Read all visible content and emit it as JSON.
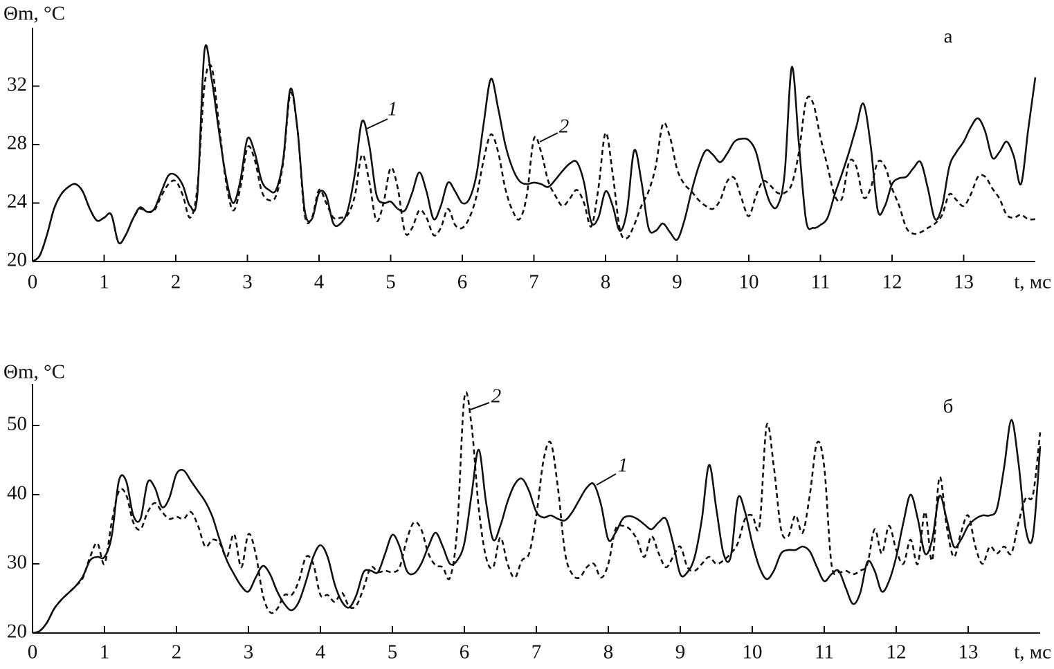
{
  "chart_data": [
    {
      "type": "line",
      "panel_label": "а",
      "y_label": "Θm, °C",
      "x_label": "t, мс",
      "x": [
        0,
        0.1,
        0.2,
        0.3,
        0.4,
        0.5,
        0.6,
        0.7,
        0.8,
        0.9,
        1,
        1.1,
        1.2,
        1.3,
        1.4,
        1.5,
        1.6,
        1.7,
        1.8,
        1.9,
        2,
        2.1,
        2.2,
        2.3,
        2.4,
        2.5,
        2.6,
        2.7,
        2.8,
        2.9,
        3,
        3.1,
        3.2,
        3.3,
        3.4,
        3.5,
        3.6,
        3.7,
        3.8,
        3.9,
        4,
        4.1,
        4.2,
        4.3,
        4.4,
        4.5,
        4.6,
        4.7,
        4.8,
        4.9,
        5,
        5.1,
        5.2,
        5.3,
        5.4,
        5.5,
        5.6,
        5.7,
        5.8,
        5.9,
        6,
        6.1,
        6.2,
        6.3,
        6.4,
        6.5,
        6.6,
        6.7,
        6.8,
        6.9,
        7,
        7.1,
        7.2,
        7.3,
        7.4,
        7.5,
        7.6,
        7.7,
        7.8,
        7.9,
        8,
        8.1,
        8.2,
        8.3,
        8.4,
        8.5,
        8.6,
        8.7,
        8.8,
        8.9,
        9,
        9.1,
        9.2,
        9.3,
        9.4,
        9.5,
        9.6,
        9.7,
        9.8,
        9.9,
        10,
        10.1,
        10.2,
        10.3,
        10.4,
        10.5,
        10.6,
        10.7,
        10.8,
        10.9,
        11,
        11.1,
        11.2,
        11.3,
        11.4,
        11.5,
        11.6,
        11.7,
        11.8,
        11.9,
        12,
        12.1,
        12.2,
        12.3,
        12.4,
        12.5,
        12.6,
        12.7,
        12.8,
        12.9,
        13,
        13.1,
        13.2,
        13.3,
        13.4,
        13.5,
        13.6,
        13.7,
        13.8,
        13.9,
        14
      ],
      "series": [
        {
          "name": "1",
          "color": "#111111",
          "style": "solid",
          "values": [
            20.0,
            20.4,
            21.8,
            23.6,
            24.6,
            25.1,
            25.3,
            24.8,
            23.6,
            22.8,
            23.0,
            23.2,
            21.3,
            21.8,
            22.9,
            23.7,
            23.4,
            23.6,
            24.8,
            25.9,
            25.9,
            25.2,
            23.8,
            24.5,
            34.4,
            32.5,
            29.0,
            25.8,
            24.0,
            25.5,
            28.4,
            27.5,
            25.5,
            24.9,
            24.9,
            27.0,
            31.8,
            29.0,
            23.5,
            22.9,
            24.7,
            24.5,
            22.6,
            22.6,
            23.5,
            26.0,
            29.6,
            28.0,
            24.6,
            24.0,
            24.1,
            23.6,
            23.5,
            24.7,
            26.1,
            24.8,
            22.9,
            23.8,
            25.4,
            24.8,
            24.0,
            24.3,
            26.0,
            29.5,
            32.5,
            30.5,
            28.0,
            26.4,
            25.5,
            25.3,
            25.4,
            25.3,
            25.1,
            25.6,
            26.2,
            26.7,
            26.8,
            25.4,
            22.7,
            23.0,
            24.8,
            23.8,
            22.1,
            23.5,
            27.6,
            25.5,
            22.3,
            22.1,
            22.6,
            22.0,
            21.5,
            22.8,
            24.8,
            26.5,
            27.6,
            27.3,
            26.8,
            27.4,
            28.2,
            28.4,
            28.3,
            27.5,
            25.5,
            24.0,
            23.8,
            26.0,
            33.3,
            28.0,
            22.8,
            22.3,
            22.5,
            23.0,
            24.6,
            26.0,
            27.5,
            29.2,
            30.8,
            28.0,
            23.5,
            23.8,
            25.3,
            25.7,
            25.8,
            26.4,
            26.8,
            25.0,
            22.9,
            23.8,
            26.5,
            27.5,
            28.2,
            29.2,
            29.8,
            28.9,
            27.1,
            27.5,
            28.2,
            27.2,
            25.3,
            29.0,
            32.6
          ]
        },
        {
          "name": "2",
          "color": "#111111",
          "style": "dashed",
          "values": [
            20.0,
            20.4,
            21.8,
            23.6,
            24.6,
            25.1,
            25.3,
            24.8,
            23.6,
            22.8,
            23.0,
            23.2,
            21.3,
            21.8,
            22.9,
            23.6,
            23.4,
            23.5,
            24.5,
            25.3,
            25.5,
            24.5,
            23.0,
            25.0,
            32.0,
            33.3,
            29.5,
            25.5,
            23.5,
            25.0,
            27.8,
            27.0,
            24.8,
            24.2,
            24.5,
            26.8,
            31.5,
            29.0,
            23.2,
            23.0,
            24.9,
            24.0,
            23.0,
            23.0,
            23.2,
            24.5,
            27.3,
            25.5,
            22.8,
            24.0,
            26.4,
            25.0,
            22.0,
            22.3,
            23.5,
            23.0,
            21.8,
            22.3,
            23.6,
            22.5,
            22.3,
            23.0,
            24.5,
            27.0,
            28.7,
            27.5,
            25.0,
            23.5,
            22.9,
            24.5,
            28.4,
            27.5,
            25.5,
            24.5,
            23.8,
            24.3,
            24.9,
            24.0,
            22.4,
            25.0,
            28.8,
            26.0,
            22.2,
            21.6,
            22.5,
            23.8,
            24.8,
            26.5,
            29.4,
            28.5,
            26.3,
            25.3,
            24.8,
            24.2,
            23.8,
            23.6,
            24.2,
            25.5,
            25.7,
            24.3,
            23.1,
            24.5,
            25.5,
            25.2,
            24.7,
            24.7,
            25.3,
            27.5,
            31.0,
            30.8,
            28.5,
            26.5,
            24.5,
            24.3,
            26.8,
            26.5,
            24.4,
            25.0,
            26.8,
            26.5,
            25.0,
            23.8,
            22.3,
            21.9,
            22.0,
            22.3,
            22.6,
            23.2,
            24.6,
            24.2,
            23.8,
            24.6,
            25.8,
            25.8,
            25.0,
            24.3,
            23.2,
            23.0,
            23.2,
            22.9,
            22.9
          ]
        }
      ],
      "xlim": [
        0,
        14
      ],
      "xticks": [
        0,
        1,
        2,
        3,
        4,
        5,
        6,
        7,
        8,
        9,
        10,
        11,
        12,
        13
      ],
      "ylim": [
        20,
        36
      ],
      "yticks": [
        20,
        24,
        28,
        32
      ]
    },
    {
      "type": "line",
      "panel_label": "б",
      "y_label": "Θm, °C",
      "x_label": "t, мс",
      "x": [
        0,
        0.1,
        0.2,
        0.3,
        0.4,
        0.5,
        0.6,
        0.7,
        0.8,
        0.9,
        1,
        1.1,
        1.2,
        1.3,
        1.4,
        1.5,
        1.6,
        1.7,
        1.8,
        1.9,
        2,
        2.1,
        2.2,
        2.3,
        2.4,
        2.5,
        2.6,
        2.7,
        2.8,
        2.9,
        3,
        3.1,
        3.2,
        3.3,
        3.4,
        3.5,
        3.6,
        3.7,
        3.8,
        3.9,
        4,
        4.1,
        4.2,
        4.3,
        4.4,
        4.5,
        4.6,
        4.7,
        4.8,
        4.9,
        5,
        5.1,
        5.2,
        5.3,
        5.4,
        5.5,
        5.6,
        5.7,
        5.8,
        5.9,
        6,
        6.1,
        6.2,
        6.3,
        6.4,
        6.5,
        6.6,
        6.7,
        6.8,
        6.9,
        7,
        7.1,
        7.2,
        7.3,
        7.4,
        7.5,
        7.6,
        7.7,
        7.8,
        7.9,
        8,
        8.1,
        8.2,
        8.3,
        8.4,
        8.5,
        8.6,
        8.7,
        8.8,
        8.9,
        9,
        9.1,
        9.2,
        9.3,
        9.4,
        9.5,
        9.6,
        9.7,
        9.8,
        9.9,
        10,
        10.1,
        10.2,
        10.3,
        10.4,
        10.5,
        10.6,
        10.7,
        10.8,
        10.9,
        11,
        11.1,
        11.2,
        11.3,
        11.4,
        11.5,
        11.6,
        11.7,
        11.8,
        11.9,
        12,
        12.1,
        12.2,
        12.3,
        12.4,
        12.5,
        12.6,
        12.7,
        12.8,
        12.9,
        13,
        13.1,
        13.2,
        13.3,
        13.4,
        13.5,
        13.6,
        13.7,
        13.8,
        13.9,
        14
      ],
      "series": [
        {
          "name": "1",
          "color": "#111111",
          "style": "solid",
          "values": [
            20.0,
            20.3,
            21.5,
            23.5,
            24.8,
            25.8,
            26.8,
            28.2,
            30.5,
            31.0,
            31.0,
            34.0,
            42.0,
            42.0,
            37.0,
            36.5,
            41.8,
            41.0,
            38.2,
            39.5,
            43.0,
            43.5,
            42.0,
            40.5,
            39.0,
            36.8,
            33.5,
            30.5,
            28.5,
            26.8,
            26.0,
            28.0,
            29.7,
            28.5,
            26.0,
            24.2,
            23.3,
            24.5,
            27.5,
            31.0,
            32.7,
            31.0,
            27.0,
            24.5,
            23.7,
            25.5,
            28.8,
            29.0,
            28.8,
            31.5,
            34.2,
            32.5,
            29.0,
            28.6,
            30.0,
            32.5,
            34.5,
            32.5,
            30.0,
            30.5,
            33.0,
            40.0,
            46.5,
            39.0,
            33.5,
            35.5,
            39.0,
            41.5,
            42.3,
            40.5,
            37.5,
            36.7,
            37.0,
            36.5,
            36.3,
            37.5,
            39.3,
            41.0,
            41.5,
            38.5,
            33.5,
            34.5,
            36.5,
            36.9,
            36.5,
            35.7,
            35.0,
            36.0,
            36.5,
            33.0,
            28.5,
            28.8,
            31.0,
            36.5,
            44.3,
            38.0,
            31.5,
            31.0,
            39.5,
            37.5,
            33.0,
            29.5,
            27.8,
            29.0,
            31.5,
            32.0,
            32.0,
            32.5,
            31.8,
            29.5,
            27.5,
            28.5,
            29.0,
            26.5,
            24.2,
            25.8,
            30.3,
            29.0,
            26.0,
            27.5,
            31.0,
            36.0,
            40.0,
            36.5,
            31.5,
            33.5,
            39.8,
            36.5,
            32.5,
            33.5,
            35.5,
            36.5,
            37.0,
            37.0,
            38.0,
            44.0,
            50.8,
            44.5,
            35.0,
            34.0,
            47.0
          ]
        },
        {
          "name": "2",
          "color": "#111111",
          "style": "dashed",
          "values": [
            20.0,
            20.3,
            21.5,
            23.5,
            24.8,
            25.8,
            26.8,
            28.0,
            31.0,
            33.0,
            30.0,
            36.0,
            40.5,
            40.0,
            36.0,
            35.0,
            37.5,
            38.8,
            37.5,
            36.5,
            36.8,
            36.5,
            37.5,
            35.5,
            32.5,
            33.5,
            33.0,
            31.0,
            34.3,
            29.5,
            34.3,
            31.5,
            25.5,
            23.0,
            23.5,
            25.5,
            25.5,
            27.5,
            31.0,
            30.0,
            25.5,
            25.5,
            24.5,
            25.8,
            23.8,
            24.0,
            26.5,
            29.5,
            28.8,
            29.0,
            28.8,
            29.5,
            33.5,
            36.0,
            35.0,
            31.5,
            29.8,
            29.5,
            28.0,
            35.0,
            54.0,
            50.0,
            38.0,
            31.0,
            29.5,
            33.8,
            30.0,
            28.0,
            30.5,
            31.5,
            37.0,
            45.0,
            47.5,
            41.0,
            31.5,
            28.5,
            28.0,
            29.5,
            30.0,
            28.0,
            30.0,
            35.0,
            35.5,
            35.0,
            33.5,
            31.0,
            34.0,
            31.5,
            29.5,
            31.0,
            32.5,
            29.5,
            29.0,
            30.0,
            31.0,
            30.0,
            30.5,
            31.5,
            33.0,
            36.5,
            37.0,
            35.5,
            50.0,
            44.0,
            35.0,
            34.0,
            37.0,
            34.5,
            40.0,
            47.5,
            44.0,
            30.0,
            28.8,
            29.0,
            28.5,
            29.0,
            30.0,
            35.0,
            31.5,
            35.5,
            32.0,
            30.0,
            33.5,
            30.0,
            37.5,
            30.5,
            42.5,
            35.5,
            31.0,
            34.5,
            37.0,
            32.5,
            30.0,
            32.5,
            31.5,
            32.5,
            31.5,
            36.0,
            39.5,
            40.0,
            49.0
          ]
        }
      ],
      "xlim": [
        0,
        14
      ],
      "xticks": [
        0,
        1,
        2,
        3,
        4,
        5,
        6,
        7,
        8,
        9,
        10,
        11,
        12,
        13
      ],
      "ylim": [
        20,
        56
      ],
      "yticks": [
        20,
        30,
        40,
        50
      ]
    }
  ]
}
